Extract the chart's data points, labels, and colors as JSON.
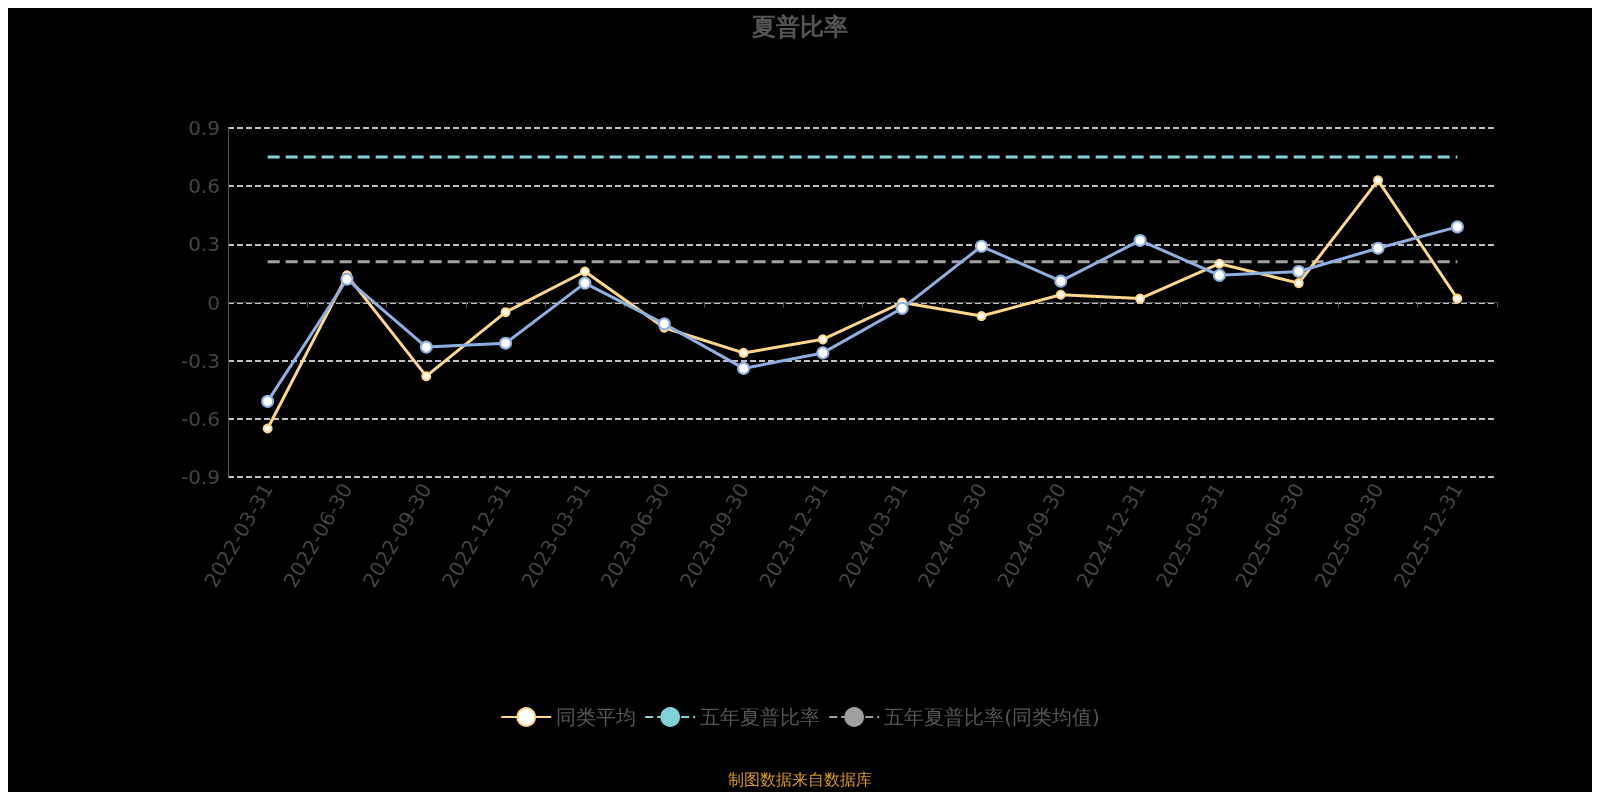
{
  "chart_data": {
    "type": "line",
    "title": "夏普比率",
    "categories": [
      "2022-03-31",
      "2022-06-30",
      "2022-09-30",
      "2022-12-31",
      "2023-03-31",
      "2023-06-30",
      "2023-09-30",
      "2023-12-31",
      "2024-03-31",
      "2024-06-30",
      "2024-09-30",
      "2024-12-31",
      "2025-03-31",
      "2025-06-30",
      "2025-09-30",
      "2025-12-31"
    ],
    "series": [
      {
        "color": "#8eb0e0",
        "marker": "circle",
        "line_style": "solid",
        "values": [
          -0.51,
          0.12,
          -0.23,
          -0.21,
          0.1,
          -0.11,
          -0.34,
          -0.26,
          -0.03,
          0.29,
          0.11,
          0.32,
          0.14,
          0.16,
          0.28,
          0.39
        ]
      },
      {
        "name": "同类平均",
        "color": "#ffd68a",
        "marker": "circle",
        "line_style": "solid",
        "values": [
          -0.65,
          0.14,
          -0.38,
          -0.05,
          0.16,
          -0.13,
          -0.26,
          -0.19,
          0.0,
          -0.07,
          0.04,
          0.02,
          0.2,
          0.1,
          0.63,
          0.02
        ]
      },
      {
        "name": "五年夏普比率",
        "color": "#7fd3d8",
        "marker": "none",
        "line_style": "dashed",
        "values": [
          0.75,
          0.75,
          0.75,
          0.75,
          0.75,
          0.75,
          0.75,
          0.75,
          0.75,
          0.75,
          0.75,
          0.75,
          0.75,
          0.75,
          0.75,
          0.75
        ]
      },
      {
        "name": "五年夏普比率(同类均值)",
        "color": "#a0a0a0",
        "marker": "none",
        "line_style": "dashed",
        "values": [
          0.21,
          0.21,
          0.21,
          0.21,
          0.21,
          0.21,
          0.21,
          0.21,
          0.21,
          0.21,
          0.21,
          0.21,
          0.21,
          0.21,
          0.21,
          0.21
        ]
      }
    ],
    "ylim": [
      -0.9,
      0.9
    ],
    "yticks": [
      -0.9,
      -0.6,
      -0.3,
      0,
      0.3,
      0.6,
      0.9
    ],
    "grid": "y",
    "legend": "bottom",
    "annotations": [
      "制图数据来自数据库"
    ]
  }
}
